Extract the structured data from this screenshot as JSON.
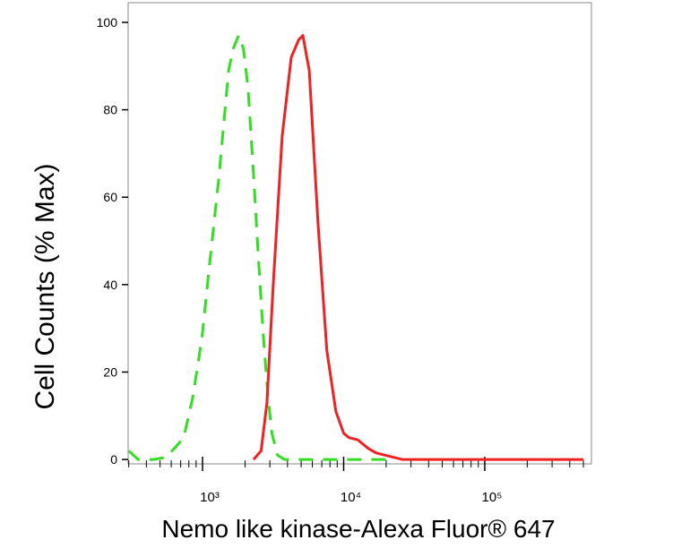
{
  "chart_data": {
    "type": "line",
    "xlabel": "Nemo like kinase-Alexa Fluor® 647",
    "ylabel": "Cell Counts (% Max)",
    "xscale": "log",
    "xlim": [
      297,
      570000
    ],
    "ylim": [
      -1,
      104.5
    ],
    "xticks": [
      {
        "value": 1000,
        "label": "10³"
      },
      {
        "value": 10000,
        "label": "10⁴"
      },
      {
        "value": 100000,
        "label": "10⁵"
      }
    ],
    "xminorticks": [
      300,
      400,
      500,
      600,
      700,
      800,
      900,
      2000,
      3000,
      4000,
      5000,
      6000,
      7000,
      8000,
      9000,
      20000,
      30000,
      40000,
      50000,
      60000,
      70000,
      80000,
      90000,
      200000,
      300000,
      400000,
      500000
    ],
    "yticks": [
      0,
      20,
      40,
      60,
      80,
      100
    ],
    "series": [
      {
        "color": "#33dd22",
        "dash": true,
        "x": [
          300,
          350,
          450,
          550,
          650,
          735,
          850,
          950,
          1000,
          1100,
          1300,
          1530,
          1650,
          1800,
          1950,
          2100,
          2300,
          2500,
          2700,
          2900,
          3100,
          3400,
          3800,
          5000,
          8000,
          20000
        ],
        "values": [
          2,
          0,
          0,
          0.5,
          3,
          5,
          14,
          24,
          29,
          42,
          64,
          89,
          94,
          97,
          94,
          85,
          65,
          45,
          28,
          15,
          6,
          1,
          0,
          0,
          0,
          0
        ]
      },
      {
        "color": "#ee2222",
        "dash": false,
        "x": [
          2300,
          2600,
          2860,
          3170,
          3670,
          4250,
          4800,
          5140,
          5700,
          6580,
          7600,
          8800,
          10000,
          10900,
          12600,
          15000,
          17000,
          26000,
          100000,
          500000
        ],
        "values": [
          0,
          2,
          13,
          40,
          74,
          92,
          96,
          97,
          89,
          54,
          25,
          11,
          6,
          5,
          4.5,
          2.5,
          1.5,
          0,
          0,
          0
        ]
      }
    ]
  }
}
